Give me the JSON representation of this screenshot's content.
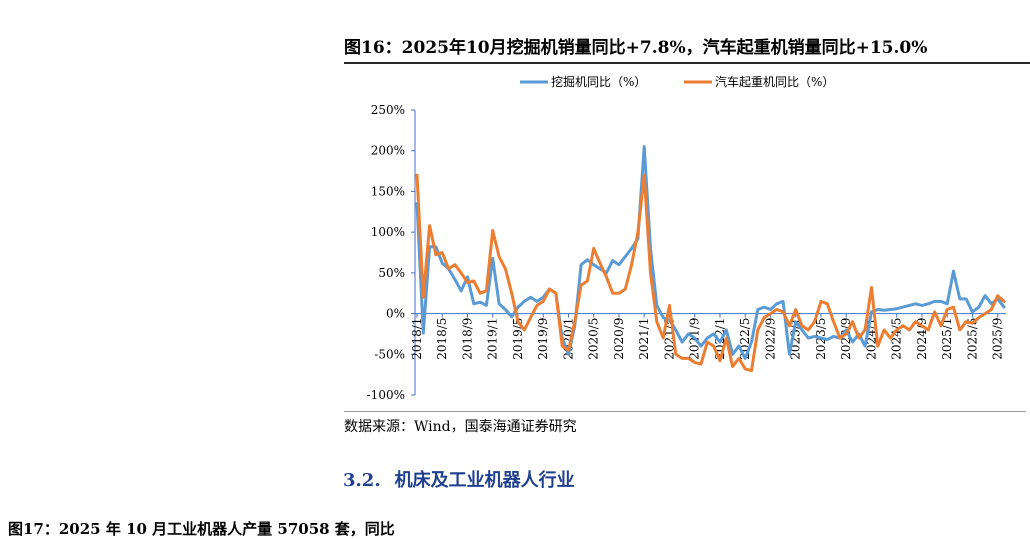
{
  "figure_title": "图16：2025年10月挖掘机销量同比+7.8%，汽车起重机销量同比+15.0%",
  "source_note": "数据来源：Wind，国泰海通证券研究",
  "section": {
    "number": "3.2.",
    "title": "机床及工业机器人行业"
  },
  "next_figure_title_partial": "图17：2025 年 10 月工业机器人产量 57058 套，同比",
  "colors": {
    "excavator": "#5b9bd5",
    "crane": "#ed7d31",
    "axis": "#4472c4"
  },
  "chart_data": {
    "type": "line",
    "title": "",
    "xlabel": "",
    "ylabel": "",
    "ylim": [
      -1.0,
      2.5
    ],
    "y_ticks": [
      "250%",
      "200%",
      "150%",
      "100%",
      "50%",
      "0%",
      "-50%",
      "-100%"
    ],
    "x_tick_labels": [
      "2018/1",
      "2018/5",
      "2018/9",
      "2019/1",
      "2019/5",
      "2019/9",
      "2020/1",
      "2020/5",
      "2020/9",
      "2021/1",
      "2021/5",
      "2021/9",
      "2022/1",
      "2022/5",
      "2022/9",
      "2023/1",
      "2023/5",
      "2023/9",
      "2024/1",
      "2024/5",
      "2024/9",
      "2025/1",
      "2025/5",
      "2025/9"
    ],
    "legend_position": "top",
    "x": [
      "2018/1",
      "2018/2",
      "2018/3",
      "2018/4",
      "2018/5",
      "2018/6",
      "2018/7",
      "2018/8",
      "2018/9",
      "2018/10",
      "2018/11",
      "2018/12",
      "2019/1",
      "2019/2",
      "2019/3",
      "2019/4",
      "2019/5",
      "2019/6",
      "2019/7",
      "2019/8",
      "2019/9",
      "2019/10",
      "2019/11",
      "2019/12",
      "2020/1",
      "2020/2",
      "2020/3",
      "2020/4",
      "2020/5",
      "2020/6",
      "2020/7",
      "2020/8",
      "2020/9",
      "2020/10",
      "2020/11",
      "2020/12",
      "2021/1",
      "2021/2",
      "2021/3",
      "2021/4",
      "2021/5",
      "2021/6",
      "2021/7",
      "2021/8",
      "2021/9",
      "2021/10",
      "2021/11",
      "2021/12",
      "2022/1",
      "2022/2",
      "2022/3",
      "2022/4",
      "2022/5",
      "2022/6",
      "2022/7",
      "2022/8",
      "2022/9",
      "2022/10",
      "2022/11",
      "2022/12",
      "2023/1",
      "2023/2",
      "2023/3",
      "2023/4",
      "2023/5",
      "2023/6",
      "2023/7",
      "2023/8",
      "2023/9",
      "2023/10",
      "2023/11",
      "2023/12",
      "2024/1",
      "2024/2",
      "2024/3",
      "2024/4",
      "2024/5",
      "2024/6",
      "2024/7",
      "2024/8",
      "2024/9",
      "2024/10",
      "2024/11",
      "2024/12",
      "2025/1",
      "2025/2",
      "2025/3",
      "2025/4",
      "2025/5",
      "2025/6",
      "2025/7",
      "2025/8",
      "2025/9",
      "2025/10"
    ],
    "series": [
      {
        "name": "挖掘机同比（%）",
        "values": [
          1.35,
          -0.24,
          0.82,
          0.82,
          0.62,
          0.55,
          0.42,
          0.28,
          0.45,
          0.12,
          0.14,
          0.1,
          0.68,
          0.12,
          0.05,
          -0.04,
          0.08,
          0.15,
          0.2,
          0.15,
          0.2,
          0.3,
          0.25,
          -0.3,
          -0.5,
          -0.15,
          0.6,
          0.66,
          0.6,
          0.55,
          0.5,
          0.65,
          0.6,
          0.7,
          0.8,
          0.92,
          2.05,
          0.8,
          0.1,
          -0.05,
          -0.08,
          -0.2,
          -0.35,
          -0.25,
          -0.3,
          -0.4,
          -0.3,
          -0.25,
          -0.35,
          -0.2,
          -0.5,
          -0.4,
          -0.55,
          -0.35,
          0.05,
          0.08,
          0.05,
          0.12,
          0.15,
          -0.5,
          -0.1,
          -0.2,
          -0.3,
          -0.28,
          -0.3,
          -0.32,
          -0.28,
          -0.3,
          -0.2,
          -0.35,
          -0.25,
          -0.4,
          0.02,
          0.05,
          0.04,
          0.05,
          0.06,
          0.08,
          0.1,
          0.12,
          0.1,
          0.12,
          0.15,
          0.15,
          0.12,
          0.52,
          0.18,
          0.18,
          0.02,
          0.08,
          0.22,
          0.12,
          0.18,
          0.08
        ]
      },
      {
        "name": "汽车起重机同比（%）",
        "values": [
          1.7,
          0.2,
          1.08,
          0.72,
          0.75,
          0.55,
          0.6,
          0.5,
          0.38,
          0.4,
          0.25,
          0.28,
          1.02,
          0.7,
          0.55,
          0.25,
          -0.1,
          -0.2,
          -0.05,
          0.1,
          0.15,
          0.3,
          0.25,
          -0.4,
          -0.45,
          -0.1,
          0.35,
          0.4,
          0.8,
          0.62,
          0.45,
          0.25,
          0.25,
          0.3,
          0.6,
          1.0,
          1.7,
          0.5,
          -0.1,
          -0.3,
          0.1,
          -0.5,
          -0.55,
          -0.55,
          -0.6,
          -0.62,
          -0.35,
          -0.4,
          -0.58,
          -0.3,
          -0.65,
          -0.55,
          -0.68,
          -0.7,
          -0.2,
          -0.05,
          0.0,
          0.05,
          0.02,
          -0.15,
          0.05,
          -0.15,
          -0.2,
          -0.1,
          0.15,
          0.12,
          -0.1,
          -0.3,
          -0.25,
          -0.1,
          -0.3,
          -0.2,
          0.32,
          -0.4,
          -0.2,
          -0.3,
          -0.2,
          -0.15,
          -0.2,
          -0.1,
          -0.15,
          -0.2,
          0.02,
          -0.15,
          0.05,
          0.08,
          -0.2,
          -0.1,
          -0.12,
          -0.05,
          0.0,
          0.05,
          0.22,
          0.15
        ]
      }
    ]
  }
}
